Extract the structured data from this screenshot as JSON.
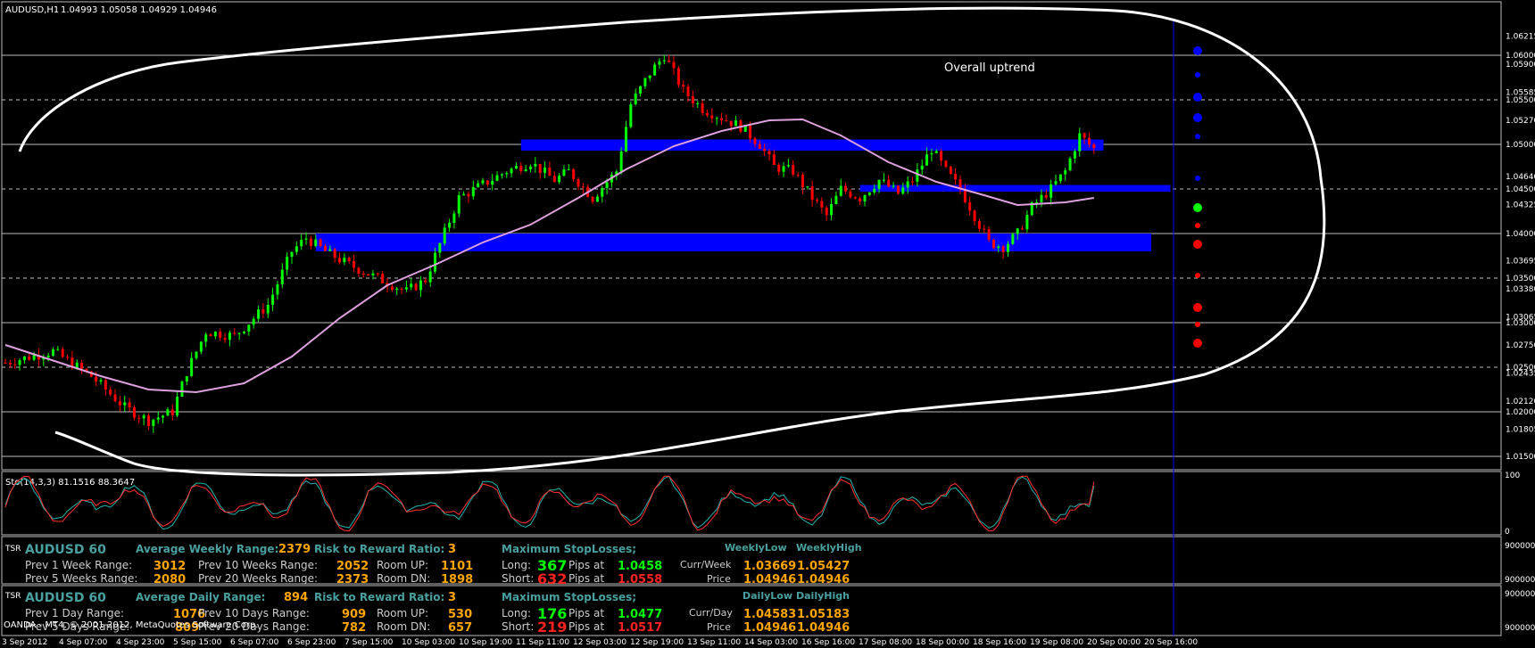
{
  "window": {
    "symbol_header": "AUDUSD,H1",
    "ohlc_header": "1.04993 1.05058 1.04929 1.04946",
    "annotation": "Overall uptrend",
    "copyright": "OANDA - MT4, © 2001-2012, MetaQuotes Software Corp."
  },
  "colors": {
    "background": "#000000",
    "bull": "#00ff00",
    "bear": "#ff0000",
    "zone": "#0000ff",
    "ma": "#dda0dd",
    "stoch_main": "#20b2aa",
    "stoch_signal": "#ff0000",
    "vline": "#0000ff",
    "panel_cyan": "#4aa0a0",
    "panel_orange": "#ffa500"
  },
  "chart_data": {
    "type": "candlestick",
    "symbol": "AUDUSD",
    "timeframe": "H1",
    "ylim": [
      1.0135,
      1.064
    ],
    "price_axis_labels": [
      "1.06215",
      "1.06000",
      "1.05900",
      "1.05585",
      "1.05500",
      "1.05270",
      "1.05000",
      "1.04640",
      "1.04500",
      "1.04325",
      "1.04000",
      "1.03695",
      "1.03500",
      "1.03380",
      "1.03065",
      "1.03000",
      "1.02750",
      "1.02500",
      "1.02435",
      "1.02120",
      "1.02000",
      "1.01805",
      "1.01500"
    ],
    "horizontal_levels": [
      1.06,
      1.055,
      1.05,
      1.045,
      1.04,
      1.035,
      1.03,
      1.025,
      1.02,
      1.015
    ],
    "dashed_levels": [
      1.055,
      1.045,
      1.035,
      1.025
    ],
    "time_labels": [
      "3 Sep 2012",
      "4 Sep 07:00",
      "4 Sep 23:00",
      "5 Sep 15:00",
      "6 Sep 07:00",
      "6 Sep 23:00",
      "7 Sep 15:00",
      "10 Sep 03:00",
      "10 Sep 19:00",
      "11 Sep 11:00",
      "12 Sep 03:00",
      "12 Sep 19:00",
      "13 Sep 11:00",
      "14 Sep 03:00",
      "16 Sep 16:00",
      "17 Sep 08:00",
      "18 Sep 00:00",
      "18 Sep 16:00",
      "19 Sep 08:00",
      "20 Sep 00:00",
      "20 Sep 16:00"
    ],
    "close_path": [
      [
        0,
        1.0255
      ],
      [
        10,
        1.0268
      ],
      [
        18,
        1.024
      ],
      [
        25,
        1.0205
      ],
      [
        30,
        1.019
      ],
      [
        35,
        1.02
      ],
      [
        38,
        1.0245
      ],
      [
        42,
        1.029
      ],
      [
        48,
        1.0285
      ],
      [
        55,
        1.032
      ],
      [
        60,
        1.038
      ],
      [
        63,
        1.0395
      ],
      [
        67,
        1.038
      ],
      [
        72,
        1.0365
      ],
      [
        78,
        1.035
      ],
      [
        84,
        1.0335
      ],
      [
        88,
        1.0348
      ],
      [
        90,
        1.0375
      ],
      [
        95,
        1.044
      ],
      [
        100,
        1.0455
      ],
      [
        105,
        1.047
      ],
      [
        110,
        1.048
      ],
      [
        115,
        1.046
      ],
      [
        118,
        1.047
      ],
      [
        123,
        1.044
      ],
      [
        128,
        1.047
      ],
      [
        131,
        1.0545
      ],
      [
        135,
        1.058
      ],
      [
        138,
        1.06
      ],
      [
        142,
        1.056
      ],
      [
        146,
        1.054
      ],
      [
        150,
        1.053
      ],
      [
        154,
        1.052
      ],
      [
        158,
        1.05
      ],
      [
        161,
        1.0475
      ],
      [
        165,
        1.047
      ],
      [
        169,
        1.044
      ],
      [
        172,
        1.042
      ],
      [
        175,
        1.045
      ],
      [
        179,
        1.044
      ],
      [
        183,
        1.046
      ],
      [
        187,
        1.0445
      ],
      [
        190,
        1.046
      ],
      [
        194,
        1.0495
      ],
      [
        197,
        1.047
      ],
      [
        200,
        1.045
      ],
      [
        203,
        1.042
      ],
      [
        206,
        1.039
      ],
      [
        209,
        1.0385
      ],
      [
        212,
        1.04
      ],
      [
        215,
        1.043
      ],
      [
        219,
        1.045
      ],
      [
        222,
        1.047
      ],
      [
        225,
        1.051
      ],
      [
        228,
        1.0495
      ]
    ],
    "moving_average": [
      [
        0,
        1.0275
      ],
      [
        20,
        1.024
      ],
      [
        30,
        1.0225
      ],
      [
        40,
        1.0222
      ],
      [
        50,
        1.0232
      ],
      [
        60,
        1.0262
      ],
      [
        70,
        1.0305
      ],
      [
        80,
        1.0342
      ],
      [
        90,
        1.0365
      ],
      [
        100,
        1.039
      ],
      [
        110,
        1.041
      ],
      [
        120,
        1.044
      ],
      [
        130,
        1.0472
      ],
      [
        140,
        1.0498
      ],
      [
        150,
        1.0515
      ],
      [
        160,
        1.0527
      ],
      [
        167,
        1.0528
      ],
      [
        175,
        1.051
      ],
      [
        185,
        1.048
      ],
      [
        195,
        1.0458
      ],
      [
        205,
        1.0443
      ],
      [
        212,
        1.0432
      ],
      [
        222,
        1.0435
      ],
      [
        228,
        1.044
      ]
    ],
    "zones": [
      {
        "from": 1.0493,
        "to": 1.05055,
        "x_start": 108,
        "x_end": 230
      },
      {
        "from": 1.0447,
        "to": 1.04545,
        "x_start": 179,
        "x_end": 244
      },
      {
        "from": 1.038,
        "to": 1.04,
        "x_start": 65,
        "x_end": 240
      }
    ],
    "projection_dots": [
      {
        "price": 1.0605,
        "color": "blue",
        "big": true
      },
      {
        "price": 1.0578,
        "color": "blue",
        "big": false
      },
      {
        "price": 1.0553,
        "color": "blue",
        "big": true
      },
      {
        "price": 1.053,
        "color": "blue",
        "big": true
      },
      {
        "price": 1.0509,
        "color": "blue",
        "big": false
      },
      {
        "price": 1.0462,
        "color": "blue",
        "big": false
      },
      {
        "price": 1.0429,
        "color": "green",
        "big": true
      },
      {
        "price": 1.0409,
        "color": "red",
        "big": false
      },
      {
        "price": 1.0388,
        "color": "red",
        "big": true
      },
      {
        "price": 1.0353,
        "color": "red",
        "big": false
      },
      {
        "price": 1.0317,
        "color": "red",
        "big": true
      },
      {
        "price": 1.0298,
        "color": "red",
        "big": false
      },
      {
        "price": 1.0277,
        "color": "red",
        "big": true
      }
    ],
    "stochastic": {
      "label": "Sto(14,3,3) 81.1516 88.3647",
      "main": 81.1516,
      "signal": 88.3647,
      "ylim": [
        0,
        100
      ],
      "axis_labels": [
        "100",
        "0"
      ]
    }
  },
  "panels": [
    {
      "tag": "TSR",
      "title": "AUDUSD 60",
      "avg_label": "Average Weekly Range:",
      "avg_value": "2379",
      "rr_label": "Risk to Reward Ratio:",
      "rr_value": "3",
      "maxsl_label": "Maximum StopLosses;",
      "col_low": "WeeklyLow",
      "col_high": "WeeklyHigh",
      "prev1_label": "Prev 1 Week Range:",
      "prev1_value": "3012",
      "prevA_label": "Prev 10 Weeks Range:",
      "prevA_value": "2052",
      "room_up_label": "Room UP:",
      "room_up_value": "1101",
      "prev2_label": "Prev 5 Weeks Range:",
      "prev2_value": "2080",
      "prevB_label": "Prev 20 Weeks Range:",
      "prevB_value": "2373",
      "room_dn_label": "Room DN:",
      "room_dn_value": "1898",
      "long_label": "Long:",
      "long_pips": "367",
      "short_label": "Short:",
      "short_pips": "632",
      "pips_at": "Pips at",
      "long_price": "1.0458",
      "short_price": "1.0558",
      "curr_label": "Curr/Week",
      "price_label": "Price",
      "curr_low": "1.03669",
      "curr_high": "1.05427",
      "price_low": "1.04946",
      "price_high": "1.04946",
      "axis_top": "900000",
      "axis_bottom": "900000"
    },
    {
      "tag": "TSR",
      "title": "AUDUSD 60",
      "avg_label": "Average Daily Range:",
      "avg_value": "894",
      "rr_label": "Risk to Reward Ratio:",
      "rr_value": "3",
      "maxsl_label": "Maximum StopLosses;",
      "col_low": "DailyLow",
      "col_high": "DailyHigh",
      "prev1_label": "Prev 1 Day Range:",
      "prev1_value": "1076",
      "prevA_label": "Prev 10 Days Range:",
      "prevA_value": "909",
      "room_up_label": "Room UP:",
      "room_up_value": "530",
      "prev2_label": "Prev 5 Days Range:",
      "prev2_value": "809",
      "prevB_label": "Prev 20 Days Range:",
      "prevB_value": "782",
      "room_dn_label": "Room DN:",
      "room_dn_value": "657",
      "long_label": "Long:",
      "long_pips": "176",
      "short_label": "Short:",
      "short_pips": "219",
      "pips_at": "Pips at",
      "long_price": "1.0477",
      "short_price": "1.0517",
      "curr_label": "Curr/Day",
      "price_label": "Price",
      "curr_low": "1.04583",
      "curr_high": "1.05183",
      "price_low": "1.04946",
      "price_high": "1.04946",
      "axis_top": "900000",
      "axis_bottom": "900000"
    }
  ]
}
